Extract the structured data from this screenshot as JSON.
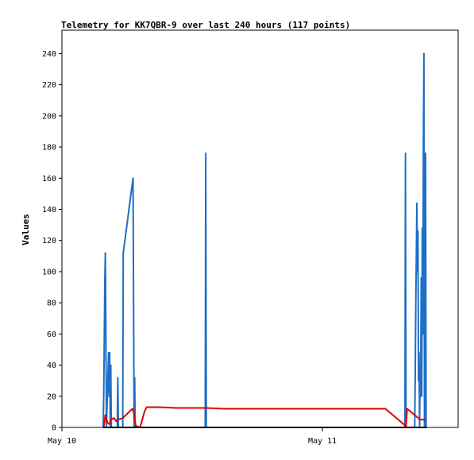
{
  "chart_data": {
    "type": "line",
    "title": "Telemetry for KK7QBR-9 over last 240 hours (117 points)",
    "xlabel": "",
    "ylabel": "Values",
    "x_ticks": [
      "May 10",
      "May 11"
    ],
    "x_tick_hours": [
      0,
      24
    ],
    "xlim_hours": [
      0,
      36.5
    ],
    "y_ticks": [
      0,
      20,
      40,
      60,
      80,
      100,
      120,
      140,
      160,
      180,
      200,
      220,
      240
    ],
    "ylim": [
      0,
      255
    ],
    "grid": false,
    "legend": "none",
    "series": [
      {
        "color": "#1f6fc5",
        "points": [
          [
            3.8,
            0
          ],
          [
            3.85,
            20
          ],
          [
            3.9,
            56
          ],
          [
            3.95,
            94
          ],
          [
            4.0,
            112
          ],
          [
            4.05,
            60
          ],
          [
            4.1,
            0
          ],
          [
            4.2,
            25
          ],
          [
            4.3,
            48
          ],
          [
            4.35,
            20
          ],
          [
            4.4,
            48
          ],
          [
            4.45,
            0
          ],
          [
            4.5,
            40
          ],
          [
            4.55,
            0
          ],
          [
            5.1,
            0
          ],
          [
            5.15,
            32
          ],
          [
            5.2,
            0
          ],
          [
            5.6,
            0
          ],
          [
            5.65,
            112
          ],
          [
            6.55,
            160
          ],
          [
            6.6,
            80
          ],
          [
            6.65,
            0
          ],
          [
            6.7,
            32
          ],
          [
            6.75,
            0
          ],
          [
            13.2,
            0
          ],
          [
            13.25,
            176
          ],
          [
            13.3,
            0
          ],
          [
            31.6,
            0
          ],
          [
            31.65,
            176
          ],
          [
            31.7,
            0
          ],
          [
            32.5,
            0
          ],
          [
            32.55,
            36
          ],
          [
            32.6,
            80
          ],
          [
            32.65,
            110
          ],
          [
            32.7,
            144
          ],
          [
            32.75,
            100
          ],
          [
            32.8,
            126
          ],
          [
            32.85,
            30
          ],
          [
            32.9,
            48
          ],
          [
            32.95,
            0
          ],
          [
            33.0,
            40
          ],
          [
            33.05,
            20
          ],
          [
            33.1,
            96
          ],
          [
            33.15,
            20
          ],
          [
            33.2,
            128
          ],
          [
            33.25,
            60
          ],
          [
            33.3,
            184
          ],
          [
            33.35,
            240
          ],
          [
            33.4,
            0
          ],
          [
            33.45,
            24
          ],
          [
            33.5,
            176
          ],
          [
            33.55,
            0
          ]
        ]
      },
      {
        "color": "#e00000",
        "points": [
          [
            3.85,
            0
          ],
          [
            4.0,
            8
          ],
          [
            4.2,
            3
          ],
          [
            4.4,
            2
          ],
          [
            4.5,
            5
          ],
          [
            4.8,
            6
          ],
          [
            5.0,
            4
          ],
          [
            5.2,
            5
          ],
          [
            5.6,
            6
          ],
          [
            6.5,
            12
          ],
          [
            6.6,
            10
          ],
          [
            6.8,
            1
          ],
          [
            7.2,
            0
          ],
          [
            7.6,
            10
          ],
          [
            7.8,
            13
          ],
          [
            9.0,
            13
          ],
          [
            10.5,
            12.5
          ],
          [
            12.0,
            12.5
          ],
          [
            13.25,
            12.5
          ],
          [
            15.0,
            12
          ],
          [
            20.0,
            12
          ],
          [
            25.0,
            12
          ],
          [
            29.8,
            12
          ],
          [
            31.5,
            2
          ],
          [
            31.7,
            0
          ],
          [
            31.8,
            12
          ],
          [
            32.5,
            8
          ],
          [
            33.0,
            5
          ],
          [
            33.3,
            5
          ],
          [
            33.5,
            5
          ]
        ]
      },
      {
        "color": "#000000",
        "points": [
          [
            3.8,
            0
          ],
          [
            33.6,
            0
          ]
        ]
      }
    ]
  }
}
